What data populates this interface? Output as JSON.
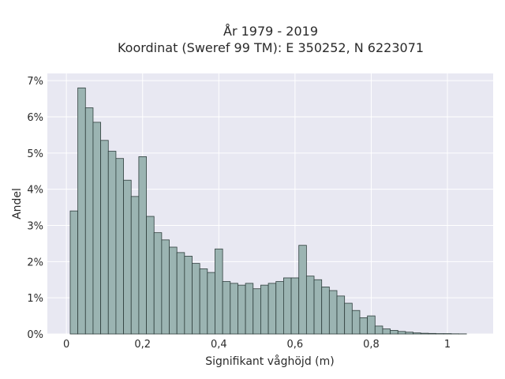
{
  "title_line1": "År 1979 - 2019",
  "title_line2": "Koordinat (Sweref 99 TM): E 350252, N 6223071",
  "colors": {
    "plot_bg": "#e8e8f2",
    "bar_fill": "#9bb4b2",
    "bar_stroke": "#2f3f3d",
    "grid": "#ffffff"
  },
  "chart_data": {
    "type": "bar",
    "xlabel": "Signifikant våghöjd (m)",
    "ylabel": "Andel",
    "xlim": [
      -0.05,
      1.12
    ],
    "ylim": [
      0,
      7.2
    ],
    "grid": true,
    "bin_width": 0.02,
    "bin_starts": [
      0.01,
      0.03,
      0.05,
      0.07,
      0.09,
      0.11,
      0.13,
      0.15,
      0.17,
      0.19,
      0.21,
      0.23,
      0.25,
      0.27,
      0.29,
      0.31,
      0.33,
      0.35,
      0.37,
      0.39,
      0.41,
      0.43,
      0.45,
      0.47,
      0.49,
      0.51,
      0.53,
      0.55,
      0.57,
      0.59,
      0.61,
      0.63,
      0.65,
      0.67,
      0.69,
      0.71,
      0.73,
      0.75,
      0.77,
      0.79,
      0.81,
      0.83,
      0.85,
      0.87,
      0.89,
      0.91,
      0.93,
      0.95,
      0.97,
      0.99,
      1.01,
      1.03
    ],
    "values": [
      3.4,
      6.8,
      6.25,
      5.85,
      5.35,
      5.05,
      4.85,
      4.25,
      3.8,
      4.9,
      3.25,
      2.8,
      2.6,
      2.4,
      2.25,
      2.15,
      1.95,
      1.8,
      1.7,
      2.35,
      1.45,
      1.4,
      1.35,
      1.4,
      1.25,
      1.35,
      1.4,
      1.45,
      1.55,
      1.55,
      2.45,
      1.6,
      1.5,
      1.3,
      1.2,
      1.05,
      0.85,
      0.65,
      0.45,
      0.5,
      0.22,
      0.14,
      0.1,
      0.07,
      0.05,
      0.03,
      0.02,
      0.015,
      0.01,
      0.01,
      0.005,
      0.003
    ],
    "x_ticks": [
      0,
      0.2,
      0.4,
      0.6,
      0.8,
      1
    ],
    "x_tick_labels": [
      "0",
      "0,2",
      "0,4",
      "0,6",
      "0,8",
      "1"
    ],
    "y_ticks": [
      0,
      1,
      2,
      3,
      4,
      5,
      6,
      7
    ],
    "y_tick_labels": [
      "0%",
      "1%",
      "2%",
      "3%",
      "4%",
      "5%",
      "6%",
      "7%"
    ]
  }
}
